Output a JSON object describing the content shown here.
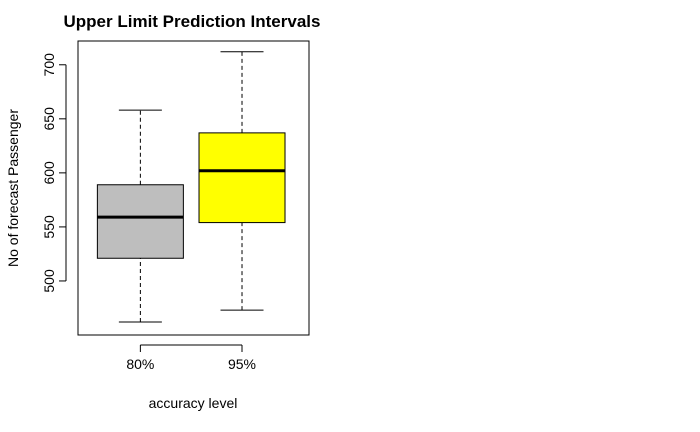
{
  "chart_data": {
    "type": "boxplot",
    "title": "Upper Limit Prediction Intervals",
    "xlabel": "accuracy level",
    "ylabel": "No of forecast Passenger",
    "categories": [
      "80%",
      "95%"
    ],
    "boxes": [
      {
        "name": "80%",
        "whisker_low": 462,
        "q1": 521,
        "median": 559,
        "q3": 589,
        "whisker_high": 658,
        "color": "#bebebe"
      },
      {
        "name": "95%",
        "whisker_low": 473,
        "q1": 554,
        "median": 602,
        "q3": 637,
        "whisker_high": 712,
        "color": "#ffff00"
      }
    ],
    "yticks": [
      500,
      550,
      600,
      650,
      700
    ],
    "ylim": [
      450,
      722
    ],
    "grid": false,
    "legend": "none"
  }
}
